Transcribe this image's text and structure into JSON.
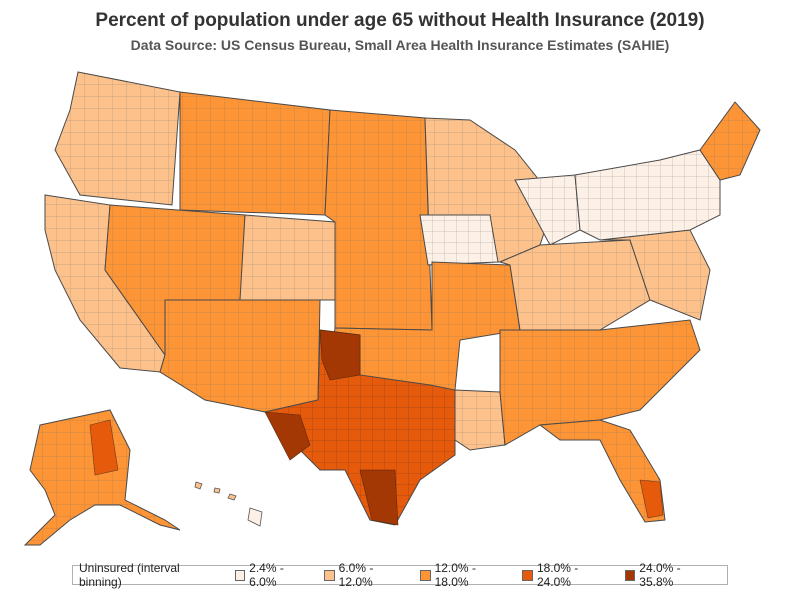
{
  "title": "Percent of population under age 65 without Health Insurance (2019)",
  "subtitle": "Data Source: US Census Bureau, Small Area Health Insurance Estimates (SAHIE)",
  "legend": {
    "title": "Uninsured (interval binning)",
    "bins": [
      {
        "label": "2.4% - 6.0%",
        "color": "#fdf0e6"
      },
      {
        "label": "6.0% - 12.0%",
        "color": "#fdc28b"
      },
      {
        "label": "12.0% - 18.0%",
        "color": "#fd9435"
      },
      {
        "label": "18.0% - 24.0%",
        "color": "#e65a0c"
      },
      {
        "label": "24.0% - 35.8%",
        "color": "#a33805"
      }
    ]
  },
  "colors": {
    "county_border": "#8a8a8a",
    "state_border": "#4a4a4a"
  }
}
